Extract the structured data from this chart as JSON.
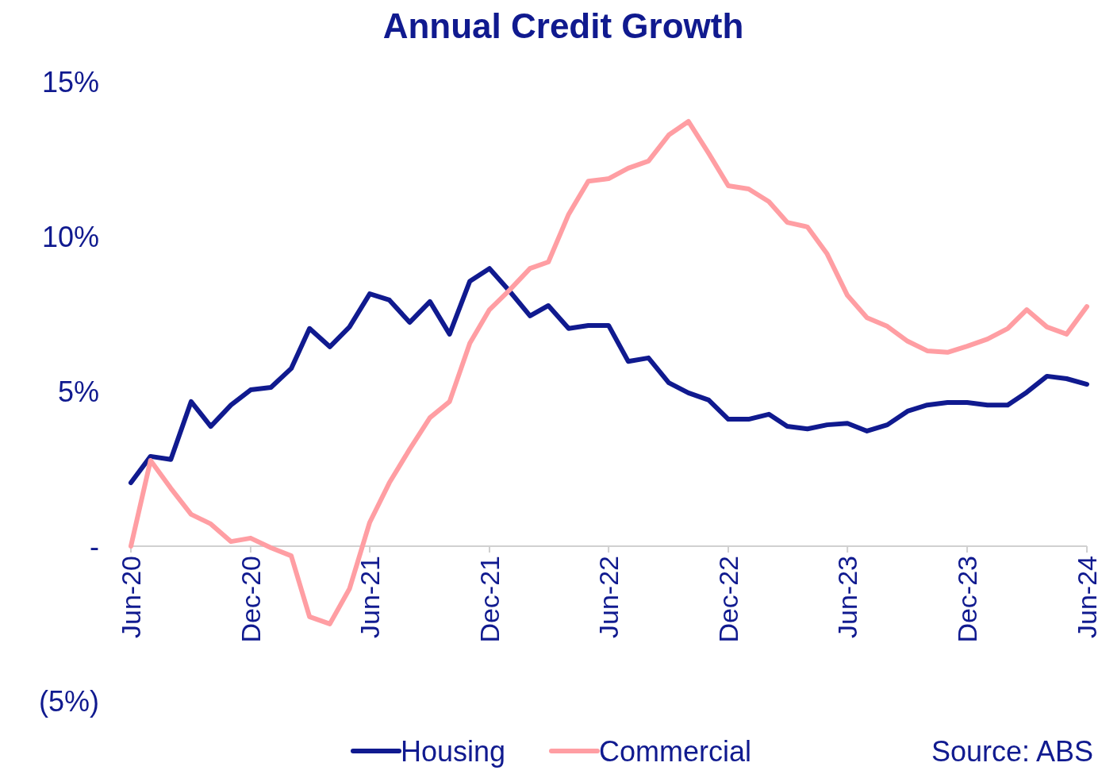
{
  "chart_data": {
    "type": "line",
    "title": "Annual Credit Growth",
    "x": [
      "2020-06",
      "2020-07",
      "2020-08",
      "2020-09",
      "2020-10",
      "2020-11",
      "2020-12",
      "2021-01",
      "2021-02",
      "2021-03",
      "2021-04",
      "2021-05",
      "2021-06",
      "2021-07",
      "2021-08",
      "2021-09",
      "2021-10",
      "2021-11",
      "2021-12",
      "2022-01",
      "2022-02",
      "2022-03",
      "2022-04",
      "2022-05",
      "2022-06",
      "2022-07",
      "2022-08",
      "2022-09",
      "2022-10",
      "2022-11",
      "2022-12",
      "2023-01",
      "2023-02",
      "2023-03",
      "2023-04",
      "2023-05",
      "2023-06",
      "2023-07",
      "2023-08",
      "2023-09",
      "2023-10",
      "2023-11",
      "2023-12",
      "2024-01",
      "2024-02",
      "2024-03",
      "2024-04",
      "2024-05",
      "2024-06"
    ],
    "series": [
      {
        "name": "Housing",
        "color": "#101a8f",
        "values": [
          2.05,
          2.9,
          2.8,
          4.67,
          3.87,
          4.56,
          5.05,
          5.13,
          5.74,
          7.03,
          6.44,
          7.08,
          8.15,
          7.95,
          7.23,
          7.9,
          6.85,
          8.56,
          8.97,
          8.23,
          7.44,
          7.77,
          7.03,
          7.13,
          7.13,
          5.97,
          6.08,
          5.28,
          4.95,
          4.72,
          4.1,
          4.1,
          4.26,
          3.87,
          3.79,
          3.92,
          3.97,
          3.72,
          3.92,
          4.36,
          4.56,
          4.64,
          4.64,
          4.56,
          4.56,
          4.97,
          5.49,
          5.41,
          5.23
        ]
      },
      {
        "name": "Commercial",
        "color": "#ff9ea3",
        "values": [
          0,
          2.77,
          1.87,
          1.03,
          0.72,
          0.15,
          0.26,
          -0.05,
          -0.31,
          -2.28,
          -2.51,
          -1.38,
          0.77,
          2.05,
          3.13,
          4.15,
          4.67,
          6.56,
          7.64,
          8.28,
          8.97,
          9.18,
          10.72,
          11.79,
          11.87,
          12.21,
          12.44,
          13.28,
          13.72,
          12.69,
          11.64,
          11.54,
          11.13,
          10.46,
          10.31,
          9.44,
          8.1,
          7.38,
          7.1,
          6.62,
          6.31,
          6.26,
          6.46,
          6.69,
          7.03,
          7.64,
          7.08,
          6.85,
          7.74
        ]
      }
    ],
    "xlim": [
      "2020-06",
      "2024-06"
    ],
    "xticks": [
      {
        "value": "2020-06",
        "label": "Jun-20"
      },
      {
        "value": "2020-12",
        "label": "Dec-20"
      },
      {
        "value": "2021-06",
        "label": "Jun-21"
      },
      {
        "value": "2021-12",
        "label": "Dec-21"
      },
      {
        "value": "2022-06",
        "label": "Jun-22"
      },
      {
        "value": "2022-12",
        "label": "Dec-22"
      },
      {
        "value": "2023-06",
        "label": "Jun-23"
      },
      {
        "value": "2023-12",
        "label": "Dec-23"
      },
      {
        "value": "2024-06",
        "label": "Jun-24"
      }
    ],
    "ylim": [
      -5,
      15
    ],
    "yticks": [
      {
        "value": 15,
        "label": "15%"
      },
      {
        "value": 10,
        "label": "10%"
      },
      {
        "value": 5,
        "label": "5%"
      },
      {
        "value": 0,
        "label": "-"
      },
      {
        "value": -5,
        "label": "(5%)"
      }
    ],
    "legend": "bottom",
    "line_style": "solid",
    "annotations": [
      "Source: ABS"
    ]
  }
}
